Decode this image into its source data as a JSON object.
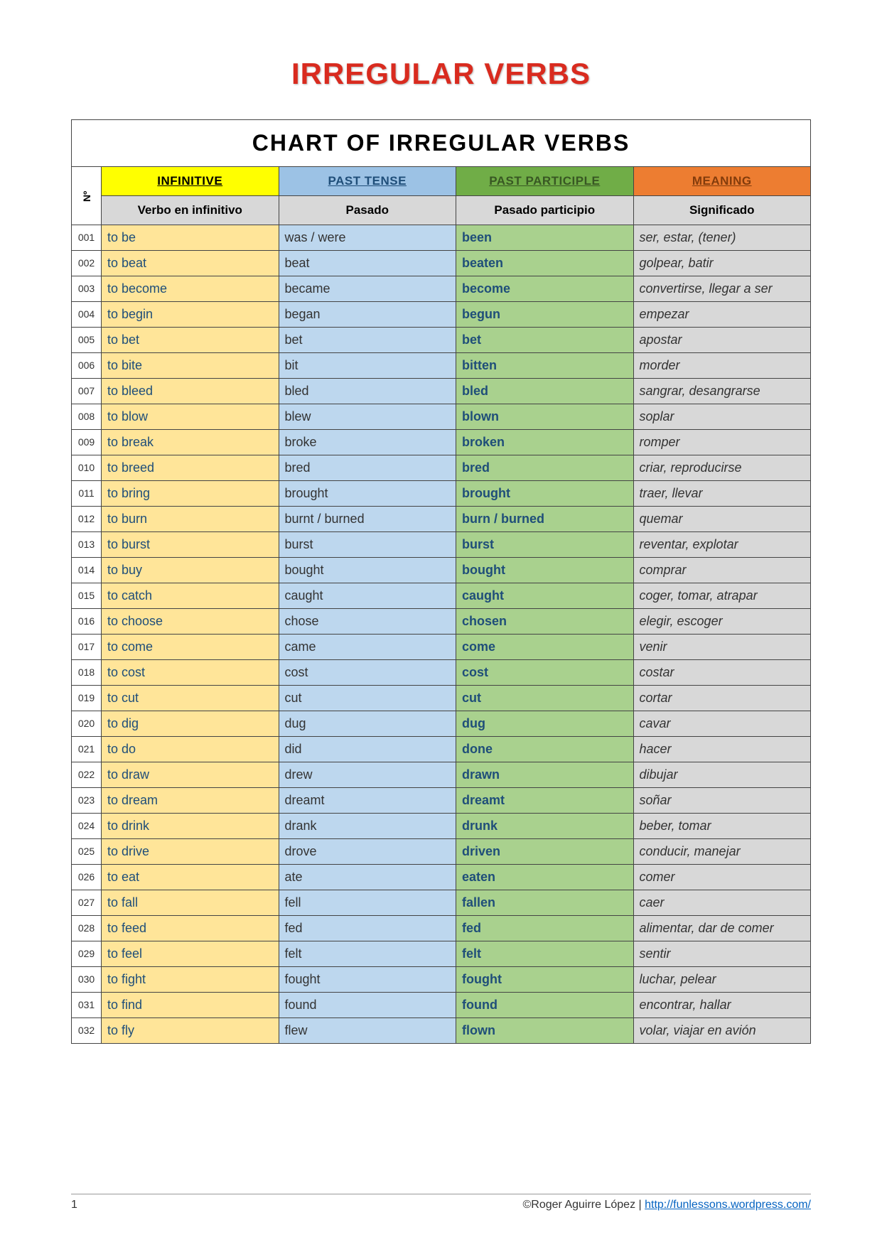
{
  "title": "IRREGULAR VERBS",
  "chart_title": "CHART OF IRREGULAR VERBS",
  "num_header": "Nº",
  "headers": {
    "infinitive": "INFINITIVE",
    "past": "PAST TENSE",
    "participle": "PAST PARTICIPLE",
    "meaning": "MEANING"
  },
  "subheaders": {
    "infinitive": "Verbo en infinitivo",
    "past": "Pasado",
    "participle": "Pasado participio",
    "meaning": "Significado"
  },
  "colors": {
    "title_color": "#d92b1f",
    "hdr_infinitive_bg": "#ffff00",
    "hdr_past_bg": "#9cc2e5",
    "hdr_participle_bg": "#70ad47",
    "hdr_meaning_bg": "#ed7d31",
    "subheader_bg": "#d8d8d8",
    "inf_cell_bg": "#ffe599",
    "past_cell_bg": "#bdd7ee",
    "pp_cell_bg": "#a9d18e",
    "mean_cell_bg": "#d8d8d8",
    "inf_text": "#1f4e79",
    "pp_text": "#1f4e79",
    "border": "#444444",
    "link_color": "#0563c1"
  },
  "rows": [
    {
      "n": "001",
      "inf": "to be",
      "past": "was / were",
      "pp": "been",
      "mean": "ser, estar, (tener)"
    },
    {
      "n": "002",
      "inf": "to beat",
      "past": "beat",
      "pp": "beaten",
      "mean": "golpear, batir"
    },
    {
      "n": "003",
      "inf": "to become",
      "past": "became",
      "pp": "become",
      "mean": "convertirse, llegar a ser"
    },
    {
      "n": "004",
      "inf": "to begin",
      "past": "began",
      "pp": "begun",
      "mean": "empezar"
    },
    {
      "n": "005",
      "inf": "to bet",
      "past": "bet",
      "pp": "bet",
      "mean": "apostar"
    },
    {
      "n": "006",
      "inf": "to bite",
      "past": "bit",
      "pp": "bitten",
      "mean": "morder"
    },
    {
      "n": "007",
      "inf": "to bleed",
      "past": "bled",
      "pp": "bled",
      "mean": "sangrar, desangrarse"
    },
    {
      "n": "008",
      "inf": "to blow",
      "past": "blew",
      "pp": "blown",
      "mean": "soplar"
    },
    {
      "n": "009",
      "inf": "to break",
      "past": "broke",
      "pp": "broken",
      "mean": "romper"
    },
    {
      "n": "010",
      "inf": "to breed",
      "past": "bred",
      "pp": "bred",
      "mean": "criar, reproducirse"
    },
    {
      "n": "011",
      "inf": "to bring",
      "past": "brought",
      "pp": "brought",
      "mean": "traer, llevar"
    },
    {
      "n": "012",
      "inf": "to burn",
      "past": "burnt / burned",
      "pp": "burn / burned",
      "mean": "quemar"
    },
    {
      "n": "013",
      "inf": "to burst",
      "past": "burst",
      "pp": "burst",
      "mean": "reventar, explotar"
    },
    {
      "n": "014",
      "inf": "to buy",
      "past": "bought",
      "pp": "bought",
      "mean": "comprar"
    },
    {
      "n": "015",
      "inf": "to catch",
      "past": "caught",
      "pp": "caught",
      "mean": "coger, tomar, atrapar"
    },
    {
      "n": "016",
      "inf": "to choose",
      "past": "chose",
      "pp": "chosen",
      "mean": "elegir, escoger"
    },
    {
      "n": "017",
      "inf": "to come",
      "past": "came",
      "pp": "come",
      "mean": "venir"
    },
    {
      "n": "018",
      "inf": "to cost",
      "past": "cost",
      "pp": "cost",
      "mean": "costar"
    },
    {
      "n": "019",
      "inf": "to cut",
      "past": "cut",
      "pp": "cut",
      "mean": "cortar"
    },
    {
      "n": "020",
      "inf": "to dig",
      "past": "dug",
      "pp": "dug",
      "mean": "cavar"
    },
    {
      "n": "021",
      "inf": "to do",
      "past": "did",
      "pp": "done",
      "mean": "hacer"
    },
    {
      "n": "022",
      "inf": "to draw",
      "past": "drew",
      "pp": "drawn",
      "mean": "dibujar"
    },
    {
      "n": "023",
      "inf": "to dream",
      "past": "dreamt",
      "pp": "dreamt",
      "mean": "soñar"
    },
    {
      "n": "024",
      "inf": "to drink",
      "past": "drank",
      "pp": "drunk",
      "mean": "beber, tomar"
    },
    {
      "n": "025",
      "inf": "to drive",
      "past": "drove",
      "pp": "driven",
      "mean": "conducir, manejar"
    },
    {
      "n": "026",
      "inf": "to eat",
      "past": "ate",
      "pp": "eaten",
      "mean": "comer"
    },
    {
      "n": "027",
      "inf": "to fall",
      "past": "fell",
      "pp": "fallen",
      "mean": "caer"
    },
    {
      "n": "028",
      "inf": "to feed",
      "past": "fed",
      "pp": "fed",
      "mean": "alimentar, dar de comer"
    },
    {
      "n": "029",
      "inf": "to feel",
      "past": "felt",
      "pp": "felt",
      "mean": "sentir"
    },
    {
      "n": "030",
      "inf": "to fight",
      "past": "fought",
      "pp": "fought",
      "mean": "luchar, pelear"
    },
    {
      "n": "031",
      "inf": "to find",
      "past": "found",
      "pp": "found",
      "mean": "encontrar, hallar"
    },
    {
      "n": "032",
      "inf": "to fly",
      "past": "flew",
      "pp": "flown",
      "mean": "volar, viajar en avión"
    }
  ],
  "footer": {
    "page": "1",
    "credit_prefix": "©Roger Aguirre López | ",
    "link_text": "http://funlessons.wordpress.com/"
  }
}
